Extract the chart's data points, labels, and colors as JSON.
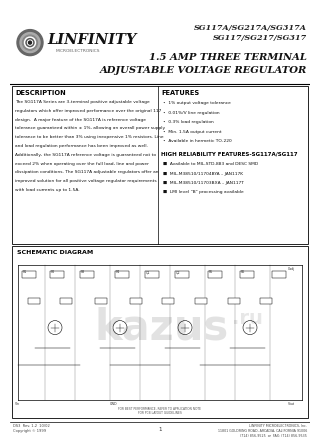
{
  "bg_color": "#ffffff",
  "header_line_color": "#000000",
  "logo_text": "LINFINITY",
  "logo_sub": "MICROELECTRONICS",
  "part_numbers_line1": "SG117A/SG217A/SG317A",
  "part_numbers_line2": "SG117/SG217/SG317",
  "title_line1": "1.5 AMP THREE TERMINAL",
  "title_line2": "ADJUSTABLE VOLTAGE REGULATOR",
  "desc_title": "DESCRIPTION",
  "desc_text": "The SG117A Series are 3-terminal positive adjustable voltage\nregulators which offer improved performance over the original 117\ndesign.  A major feature of the SG117A is reference voltage\ntolerance guaranteed within ± 1%, allowing an overall power supply\ntolerance to be better than 3% using inexpensive 1% resistors. Line\nand load regulation performance has been improved as well.\nAdditionally, the SG117A reference voltage is guaranteed not to\nexceed 2% when operating over the full load, line and power\ndissipation conditions. The SG117A adjustable regulators offer an\nimproved solution for all positive voltage regulator requirements\nwith load currents up to 1.5A.",
  "features_title": "FEATURES",
  "features": [
    "1% output voltage tolerance",
    "0.01%/V line regulation",
    "0.3% load regulation",
    "Min. 1.5A output current",
    "Available in hermetic TO-220"
  ],
  "high_rel_title": "HIGH RELIABILITY FEATURES-SG117A/SG117",
  "high_rel_items": [
    "Available to MIL-STD-883 and DESC SMD",
    "MIL-M38510/11704BYA – JAN117K",
    "MIL-M38510/11703BXA – JAN117T",
    "LMI level “B” processing available"
  ],
  "schematic_title": "SCHEMATIC DIAGRAM",
  "footer_left": "DS3  Rev. 1.2  10/02\nCopyright © 1999",
  "footer_center": "1",
  "footer_right": "LINFINITY MICROELECTRONICS, Inc.\n11801 GOLDRING ROAD, ARCADIA, CALIFORNIA 91006\n(714) 856-9525  or  FAX: (714) 856-9535"
}
